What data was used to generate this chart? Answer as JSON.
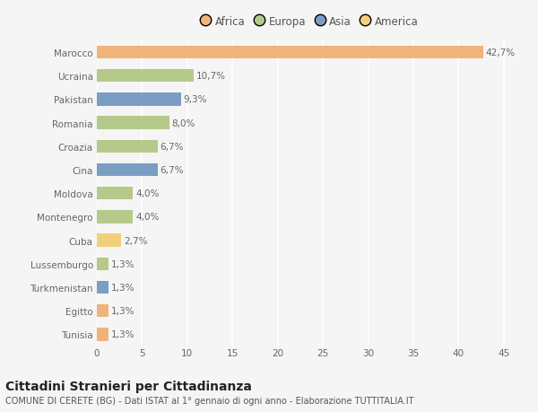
{
  "categories": [
    "Marocco",
    "Ucraina",
    "Pakistan",
    "Romania",
    "Croazia",
    "Cina",
    "Moldova",
    "Montenegro",
    "Cuba",
    "Lussemburgo",
    "Turkmenistan",
    "Egitto",
    "Tunisia"
  ],
  "values": [
    42.7,
    10.7,
    9.3,
    8.0,
    6.7,
    6.7,
    4.0,
    4.0,
    2.7,
    1.3,
    1.3,
    1.3,
    1.3
  ],
  "labels": [
    "42,7%",
    "10,7%",
    "9,3%",
    "8,0%",
    "6,7%",
    "6,7%",
    "4,0%",
    "4,0%",
    "2,7%",
    "1,3%",
    "1,3%",
    "1,3%",
    "1,3%"
  ],
  "continents": [
    "Africa",
    "Europa",
    "Asia",
    "Europa",
    "Europa",
    "Asia",
    "Europa",
    "Europa",
    "America",
    "Europa",
    "Asia",
    "Africa",
    "Africa"
  ],
  "continent_colors": {
    "Africa": "#F0B47A",
    "Europa": "#B5C98A",
    "Asia": "#7B9DC4",
    "America": "#F0D07A"
  },
  "legend_order": [
    "Africa",
    "Europa",
    "Asia",
    "America"
  ],
  "title": "Cittadini Stranieri per Cittadinanza",
  "subtitle": "COMUNE DI CERETE (BG) - Dati ISTAT al 1° gennaio di ogni anno - Elaborazione TUTTITALIA.IT",
  "xlabel_vals": [
    0,
    5,
    10,
    15,
    20,
    25,
    30,
    35,
    40,
    45
  ],
  "xlim": [
    0,
    47
  ],
  "background_color": "#f5f5f5",
  "grid_color": "#ffffff",
  "bar_height": 0.55,
  "label_fontsize": 7.5,
  "title_fontsize": 10,
  "subtitle_fontsize": 7,
  "tick_fontsize": 7.5,
  "legend_fontsize": 8.5
}
